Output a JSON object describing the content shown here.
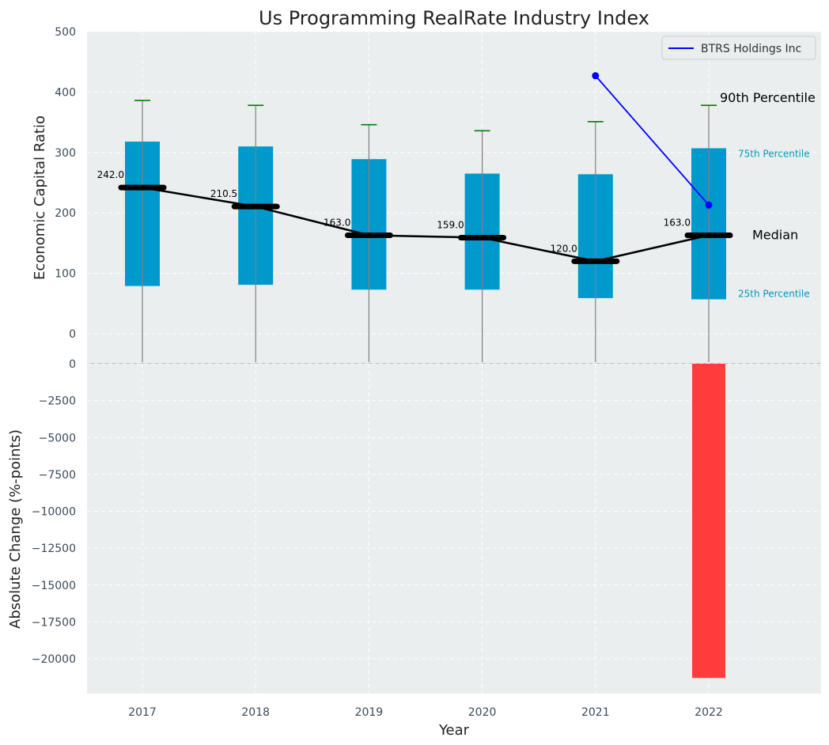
{
  "chart_data": [
    {
      "type": "box",
      "title": "Us Programming RealRate Industry Index",
      "ylabel": "Economic Capital Ratio",
      "xlabel": "",
      "ylim": [
        -50,
        500
      ],
      "yticks": [
        0,
        100,
        200,
        300,
        400,
        500
      ],
      "grid": true,
      "categories": [
        "2017",
        "2018",
        "2019",
        "2020",
        "2021",
        "2022"
      ],
      "percentiles": {
        "p10": [
          0,
          0,
          0,
          0,
          0,
          0
        ],
        "p25": [
          79,
          81,
          73,
          73,
          59,
          57
        ],
        "median": [
          242.0,
          210.5,
          163.0,
          159.0,
          120.0,
          163.0
        ],
        "p75": [
          318,
          310,
          289,
          265,
          264,
          307
        ],
        "p90": [
          386,
          378,
          346,
          336,
          351,
          378
        ]
      },
      "median_labels": [
        "242.0",
        "210.5",
        "163.0",
        "159.0",
        "120.0",
        "163.0"
      ],
      "annotations": {
        "p90": "90th Percentile",
        "p75": "75th Percentile",
        "median": "Median",
        "p25": "25th Percentile"
      },
      "series": [
        {
          "name": "BTRS Holdings Inc",
          "x": [
            "2021",
            "2022"
          ],
          "values": [
            427,
            213
          ],
          "color": "#0000ff"
        }
      ],
      "legend": "top-right",
      "colors": {
        "box": "#0099cc",
        "median": "#000000",
        "whisker_cap": "#008000",
        "whisker": "#808080"
      }
    },
    {
      "type": "bar",
      "ylabel": "Absolute Change (%-points)",
      "xlabel": "Year",
      "categories": [
        "2017",
        "2018",
        "2019",
        "2020",
        "2021",
        "2022"
      ],
      "values": [
        0,
        0,
        0,
        0,
        0,
        -21300
      ],
      "ylim": [
        -22400,
        0
      ],
      "yticks": [
        0,
        -2500,
        -5000,
        -7500,
        -10000,
        -12500,
        -15000,
        -17500,
        -20000
      ],
      "ytick_labels": [
        "0",
        "−2500",
        "−5000",
        "−7500",
        "−10000",
        "−12500",
        "−15000",
        "−17500",
        "−20000"
      ],
      "grid": true,
      "colors": {
        "bar": "#ff3c3c"
      }
    }
  ]
}
